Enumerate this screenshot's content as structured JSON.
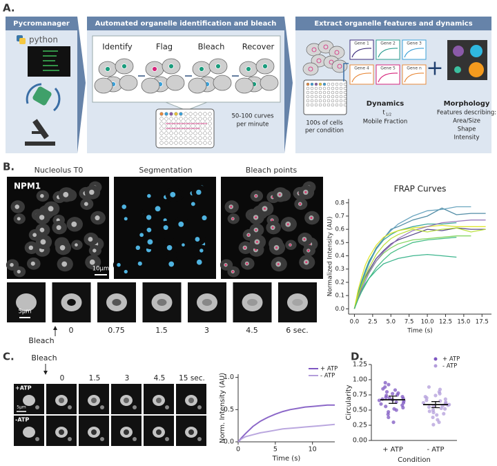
{
  "panel_a": {
    "label": "A.",
    "pycromanager": {
      "title": "Pycromanager",
      "logo": "python"
    },
    "automated": {
      "title": "Automated organelle identification and bleach",
      "steps": [
        "Identify",
        "Flag",
        "Bleach",
        "Recover"
      ],
      "rate": [
        "50-100 curves",
        "per minute"
      ]
    },
    "extract": {
      "title": "Extract organelle features and dynamics",
      "cells": [
        "100s of cells",
        "per condition"
      ],
      "genes": [
        "Gene 1",
        "Gene 2",
        "Gene 3",
        "Gene 4",
        "Gene 5",
        "Gene n"
      ],
      "dynamics": {
        "title": "Dynamics",
        "symbol": "t",
        "subscript": "1/2",
        "lines": [
          "Mobile Fraction"
        ]
      },
      "morphology": {
        "title": "Morphology",
        "lines": [
          "Features describing:",
          "Area/Size",
          "Shape",
          "Intensity"
        ]
      }
    }
  },
  "panel_b": {
    "label": "B.",
    "image_titles": [
      "Nucleolus T0",
      "Segmentation",
      "Bleach points"
    ],
    "protein": "NPM1",
    "scale_bar": "10µm",
    "small_scale_bar": "5µm",
    "bleach": "Bleach",
    "timepoints": [
      "0",
      "0.75",
      "1.5",
      "3",
      "4.5",
      "6 sec."
    ]
  },
  "panel_c": {
    "label": "C.",
    "bleach": "Bleach",
    "timepoints": [
      "0",
      "1.5",
      "3",
      "4.5",
      "15 sec."
    ],
    "rows": [
      "+ATP",
      "-ATP"
    ],
    "scale_bar": "5µm"
  },
  "panel_d": {
    "label": "D."
  },
  "chart_data": [
    {
      "type": "line",
      "title": "FRAP Curves",
      "x_label": "Time (s)",
      "y_label": "Normalized Intensity (AU)",
      "xlim": [
        -0.8,
        18.8
      ],
      "ylim": [
        -0.04,
        0.83
      ],
      "xticks": [
        {
          "value": 0,
          "label": "0.0"
        },
        2.5,
        {
          "value": 5,
          "label": "5.0"
        },
        7.5,
        {
          "value": 10,
          "label": "10.0"
        },
        12.5,
        {
          "value": 15,
          "label": "15.0"
        },
        17.5
      ],
      "yticks": [
        {
          "value": 0,
          "label": "0.0"
        },
        0.1,
        0.2,
        0.3,
        0.4,
        0.5,
        0.6,
        0.7,
        0.8
      ],
      "x": [
        0,
        0.5,
        1,
        1.5,
        2,
        3,
        4,
        5,
        6,
        8,
        10,
        12,
        14,
        16,
        18
      ],
      "series": [
        {
          "color": "#3e7f9b",
          "values": [
            0,
            0.11,
            0.2,
            0.28,
            0.35,
            0.46,
            0.53,
            0.6,
            0.62,
            0.67,
            0.7,
            0.76,
            0.71,
            0.72,
            0.72
          ]
        },
        {
          "color": "#46337e",
          "values": [
            0,
            0.09,
            0.17,
            0.24,
            0.29,
            0.38,
            0.44,
            0.49,
            0.52,
            0.56,
            0.6,
            0.59,
            0.61,
            0.6,
            0.6
          ]
        },
        {
          "color": "#2a9d8f",
          "values": [
            0,
            0.12,
            0.21,
            0.29,
            0.36,
            0.45,
            0.52,
            0.56,
            0.59,
            0.62,
            0.64,
            0.64,
            0.65,
            null,
            null
          ]
        },
        {
          "color": "#27ad81",
          "values": [
            0,
            0.08,
            0.14,
            0.19,
            0.23,
            0.29,
            0.34,
            0.36,
            0.38,
            0.4,
            0.41,
            0.4,
            0.39,
            null,
            null
          ]
        },
        {
          "color": "#5b9bb8",
          "values": [
            0,
            0.1,
            0.19,
            0.27,
            0.34,
            0.45,
            0.53,
            0.59,
            0.64,
            0.7,
            0.74,
            0.75,
            0.77,
            0.77,
            null
          ]
        },
        {
          "color": "#dce319",
          "values": [
            0,
            0.14,
            0.24,
            0.33,
            0.39,
            0.48,
            0.54,
            0.57,
            0.59,
            0.61,
            0.62,
            0.63,
            0.62,
            0.62,
            0.62
          ]
        },
        {
          "color": "#7ad151",
          "values": [
            0,
            0.09,
            0.17,
            0.23,
            0.28,
            0.36,
            0.42,
            0.46,
            0.49,
            0.52,
            0.53,
            0.54,
            0.55,
            0.55,
            null
          ]
        },
        {
          "color": "#8f6bb5",
          "values": [
            0,
            0.08,
            0.15,
            0.21,
            0.27,
            0.36,
            0.43,
            0.48,
            0.53,
            0.59,
            0.62,
            0.65,
            0.66,
            0.67,
            0.67
          ]
        },
        {
          "color": "#b5de2b",
          "values": [
            0,
            0.1,
            0.18,
            0.25,
            0.31,
            0.41,
            0.48,
            0.53,
            0.56,
            0.6,
            0.58,
            0.6,
            0.61,
            0.58,
            0.6
          ]
        },
        {
          "color": "#35b779",
          "values": [
            0,
            0.07,
            0.13,
            0.18,
            0.23,
            0.31,
            0.37,
            0.42,
            0.45,
            0.5,
            0.52,
            0.53,
            0.54,
            null,
            null
          ]
        }
      ]
    },
    {
      "type": "line",
      "x_label": "Time (s)",
      "y_label": "Norm. Intensity (AU)",
      "xlim": [
        0,
        13
      ],
      "ylim": [
        0,
        1.05
      ],
      "xticks": [
        0,
        5,
        10
      ],
      "yticks": [
        {
          "value": 0,
          "label": "0.0"
        },
        0.5,
        {
          "value": 1,
          "label": "1.0"
        }
      ],
      "legend": "top-right",
      "x": [
        0,
        0.5,
        1,
        2,
        3,
        4,
        5,
        6,
        7,
        8,
        9,
        10,
        11,
        12,
        13
      ],
      "series": [
        {
          "name": "+ ATP",
          "color": "#7e57c2",
          "values": [
            0,
            0.07,
            0.13,
            0.24,
            0.32,
            0.38,
            0.43,
            0.47,
            0.5,
            0.52,
            0.54,
            0.55,
            0.56,
            0.57,
            0.57
          ]
        },
        {
          "name": "- ATP",
          "color": "#b39ddb",
          "values": [
            0,
            0.05,
            0.08,
            0.11,
            0.14,
            0.16,
            0.18,
            0.2,
            0.21,
            0.22,
            0.23,
            0.24,
            0.25,
            0.26,
            0.27
          ]
        }
      ]
    },
    {
      "type": "strip",
      "x_label": "Condition",
      "y_label": "Circularity",
      "categories": [
        "+ ATP",
        "- ATP"
      ],
      "ylim": [
        0,
        1.25
      ],
      "yticks": [
        {
          "value": 0,
          "label": "0.00"
        },
        0.25,
        {
          "value": 0.5,
          "label": "0.50"
        },
        0.75,
        {
          "value": 1,
          "label": "1.00"
        },
        1.25
      ],
      "legend": "top-right",
      "series": [
        {
          "name": "+ ATP",
          "color": "#7e57c2",
          "mean": 0.67,
          "error": 0.06,
          "values": [
            0.95,
            0.92,
            0.88,
            0.85,
            0.83,
            0.8,
            0.78,
            0.77,
            0.75,
            0.74,
            0.72,
            0.71,
            0.7,
            0.69,
            0.68,
            0.67,
            0.66,
            0.65,
            0.63,
            0.62,
            0.6,
            0.58,
            0.56,
            0.54,
            0.52,
            0.5,
            0.47,
            0.43,
            0.38,
            0.3
          ]
        },
        {
          "name": "- ATP",
          "color": "#b39ddb",
          "mean": 0.59,
          "error": 0.05,
          "values": [
            0.88,
            0.84,
            0.8,
            0.77,
            0.74,
            0.72,
            0.7,
            0.68,
            0.66,
            0.65,
            0.63,
            0.62,
            0.61,
            0.6,
            0.59,
            0.58,
            0.57,
            0.56,
            0.55,
            0.53,
            0.52,
            0.5,
            0.48,
            0.46,
            0.44,
            0.42,
            0.38,
            0.34,
            0.3,
            0.26
          ]
        }
      ]
    }
  ]
}
